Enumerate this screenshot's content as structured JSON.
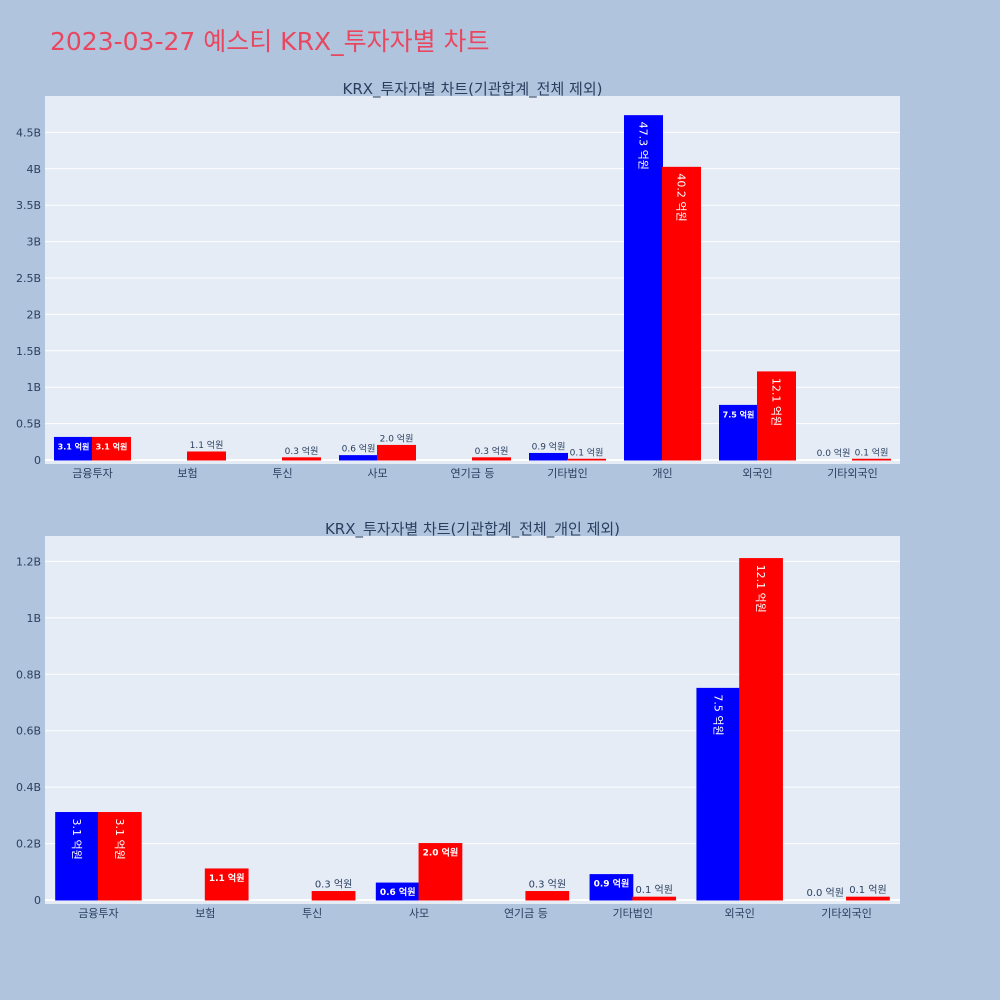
{
  "page": {
    "title": "2023-03-27 예스티 KRX_투자자별 차트"
  },
  "colors": {
    "buy": "#0000ff",
    "sell": "#ff0000",
    "plot_bg": "#e5ecf6",
    "page_bg": "#b0c4de",
    "title": "#e8475f"
  },
  "chart_data": [
    {
      "type": "bar",
      "title": "KRX_투자자별 차트(기관합계_전체 제외)",
      "categories": [
        "금융투자",
        "보험",
        "투신",
        "사모",
        "연기금 등",
        "기타법인",
        "개인",
        "외국인",
        "기타외국인"
      ],
      "series": [
        {
          "values": [
            310000000,
            0,
            0,
            60000000,
            0,
            90000000,
            4730000000,
            750000000,
            0
          ],
          "labels": [
            "3.1 억원",
            "",
            "",
            "0.6 억원",
            "",
            "0.9 억원",
            "47.3 억원",
            "7.5 억원",
            "0.0 억원"
          ]
        },
        {
          "values": [
            310000000,
            110000000,
            30000000,
            200000000,
            30000000,
            10000000,
            4020000000,
            1210000000,
            10000000
          ],
          "labels": [
            "3.1 억원",
            "1.1 억원",
            "0.3 억원",
            "2.0 억원",
            "0.3 억원",
            "0.1 억원",
            "40.2 억원",
            "12.1 억원",
            "0.1 억원"
          ]
        }
      ],
      "ylim": [
        0,
        5000000000
      ],
      "yticks": [
        0,
        500000000,
        1000000000,
        1500000000,
        2000000000,
        2500000000,
        3000000000,
        3500000000,
        4000000000,
        4500000000
      ],
      "ytick_labels": [
        "0",
        "0.5B",
        "1B",
        "1.5B",
        "2B",
        "2.5B",
        "3B",
        "3.5B",
        "4B",
        "4.5B"
      ],
      "grid": true
    },
    {
      "type": "bar",
      "title": "KRX_투자자별 차트(기관합계_전체_개인 제외)",
      "categories": [
        "금융투자",
        "보험",
        "투신",
        "사모",
        "연기금 등",
        "기타법인",
        "외국인",
        "기타외국인"
      ],
      "series": [
        {
          "values": [
            310000000,
            0,
            0,
            60000000,
            0,
            90000000,
            750000000,
            0
          ],
          "labels": [
            "3.1 억원",
            "",
            "",
            "0.6 억원",
            "",
            "0.9 억원",
            "7.5 억원",
            "0.0 억원"
          ]
        },
        {
          "values": [
            310000000,
            110000000,
            30000000,
            200000000,
            30000000,
            10000000,
            1210000000,
            10000000
          ],
          "labels": [
            "3.1 억원",
            "1.1 억원",
            "0.3 억원",
            "2.0 억원",
            "0.3 억원",
            "0.1 억원",
            "12.1 억원",
            "0.1 억원"
          ]
        }
      ],
      "ylim": [
        0,
        1290000000
      ],
      "yticks": [
        0,
        200000000,
        400000000,
        600000000,
        800000000,
        1000000000,
        1200000000
      ],
      "ytick_labels": [
        "0",
        "0.2B",
        "0.4B",
        "0.6B",
        "0.8B",
        "1B",
        "1.2B"
      ],
      "grid": true
    }
  ]
}
